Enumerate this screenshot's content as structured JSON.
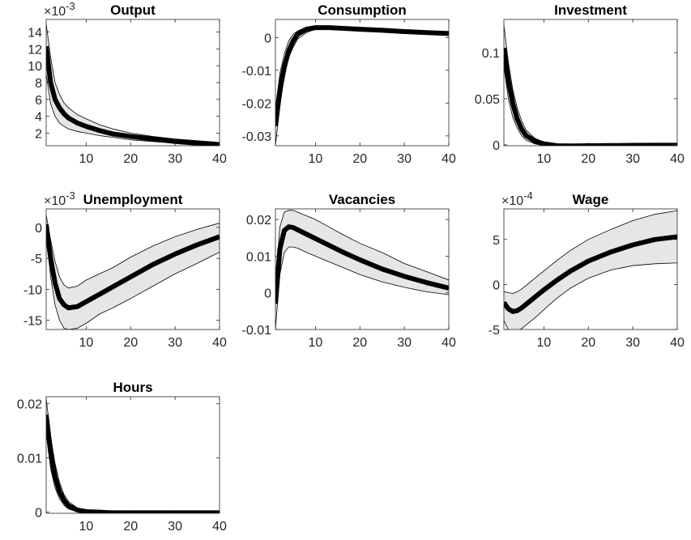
{
  "chart_data": [
    {
      "type": "band-line",
      "title": "Output",
      "y_exponent": {
        "base": "×10",
        "power": "-3"
      },
      "x": [
        1,
        2,
        3,
        4,
        5,
        6,
        8,
        10,
        13,
        16,
        20,
        25,
        30,
        35,
        40
      ],
      "values": [
        12.3,
        8,
        6,
        5,
        4.3,
        3.8,
        3.2,
        2.8,
        2.3,
        1.9,
        1.6,
        1.3,
        1.0,
        0.8,
        0.6
      ],
      "lower": [
        9,
        5.5,
        4,
        3.2,
        2.8,
        2.5,
        2.2,
        2.0,
        1.7,
        1.5,
        1.2,
        1.0,
        0.8,
        0.6,
        0.5
      ],
      "upper": [
        15,
        11,
        8,
        6.6,
        5.6,
        5,
        4.2,
        3.7,
        3.0,
        2.5,
        2.0,
        1.6,
        1.3,
        1.1,
        0.9
      ],
      "color": "#000000",
      "band_color": "#e6e6e6",
      "xlim": [
        1,
        40
      ],
      "xticks": [
        10,
        20,
        30,
        40
      ],
      "ylim": [
        0.5,
        15.5
      ],
      "yticks": [
        2,
        4,
        6,
        8,
        10,
        12,
        14
      ]
    },
    {
      "type": "band-line",
      "title": "Consumption",
      "x": [
        1,
        2,
        3,
        4,
        5,
        6,
        8,
        10,
        13,
        16,
        20,
        25,
        30,
        35,
        40
      ],
      "values": [
        -0.027,
        -0.016,
        -0.009,
        -0.004,
        -0.001,
        0.001,
        0.0025,
        0.003,
        0.003,
        0.0028,
        0.0025,
        0.0022,
        0.0018,
        0.0015,
        0.0012
      ],
      "lower": [
        -0.033,
        -0.021,
        -0.012,
        -0.006,
        -0.003,
        -0.0005,
        0.0015,
        0.0025,
        0.0026,
        0.0024,
        0.0021,
        0.0018,
        0.0015,
        0.0012,
        0.0009
      ],
      "upper": [
        -0.022,
        -0.011,
        -0.005,
        -0.001,
        0.001,
        0.002,
        0.0032,
        0.0035,
        0.0034,
        0.0032,
        0.0029,
        0.0026,
        0.0022,
        0.0019,
        0.0016
      ],
      "color": "#000000",
      "band_color": "#e6e6e6",
      "xlim": [
        1,
        40
      ],
      "xticks": [
        10,
        20,
        30,
        40
      ],
      "ylim": [
        -0.033,
        0.0055
      ],
      "yticks": [
        -0.03,
        -0.02,
        -0.01,
        0
      ]
    },
    {
      "type": "band-line",
      "title": "Investment",
      "x": [
        1,
        2,
        3,
        4,
        5,
        6,
        8,
        10,
        13,
        16,
        20,
        25,
        30,
        35,
        40
      ],
      "values": [
        0.105,
        0.07,
        0.045,
        0.028,
        0.017,
        0.01,
        0.004,
        0.001,
        -0.001,
        -0.0012,
        -0.001,
        -0.0008,
        -0.0006,
        -0.0005,
        -0.0004
      ],
      "lower": [
        0.085,
        0.05,
        0.03,
        0.018,
        0.01,
        0.005,
        0.001,
        -0.001,
        -0.002,
        -0.002,
        -0.0017,
        -0.0014,
        -0.0011,
        -0.0009,
        -0.0007
      ],
      "upper": [
        0.13,
        0.09,
        0.06,
        0.04,
        0.026,
        0.016,
        0.007,
        0.003,
        0.0005,
        0,
        0,
        0,
        0,
        0,
        0
      ],
      "color": "#000000",
      "band_color": "#e6e6e6",
      "xlim": [
        1,
        40
      ],
      "xticks": [
        10,
        20,
        30,
        40
      ],
      "ylim": [
        -0.001,
        0.136
      ],
      "yticks": [
        0,
        0.05,
        0.1
      ]
    },
    {
      "type": "band-line",
      "title": "Unemployment",
      "y_exponent": {
        "base": "×10",
        "power": "-3"
      },
      "x": [
        1,
        2,
        3,
        4,
        5,
        6,
        8,
        10,
        13,
        16,
        20,
        25,
        30,
        35,
        40
      ],
      "values": [
        0.5,
        -5,
        -9,
        -11.5,
        -12.5,
        -13,
        -12.8,
        -12,
        -10.8,
        -9.6,
        -8,
        -6,
        -4.3,
        -2.8,
        -1.5
      ],
      "lower": [
        -1,
        -8,
        -12.5,
        -15,
        -16.3,
        -16.5,
        -16.3,
        -15.5,
        -14,
        -13,
        -11.5,
        -9.5,
        -7.5,
        -5.8,
        -4
      ],
      "upper": [
        2,
        -2,
        -5.5,
        -8,
        -9.3,
        -9.8,
        -9.5,
        -8.5,
        -7.5,
        -6.5,
        -4.8,
        -3,
        -1.5,
        -0.3,
        0.7
      ],
      "color": "#000000",
      "band_color": "#e6e6e6",
      "xlim": [
        1,
        40
      ],
      "xticks": [
        10,
        20,
        30,
        40
      ],
      "ylim": [
        -16.5,
        3
      ],
      "yticks": [
        -15,
        -10,
        -5,
        0
      ]
    },
    {
      "type": "band-line",
      "title": "Vacancies",
      "x": [
        1,
        2,
        3,
        4,
        5,
        6,
        8,
        10,
        13,
        16,
        20,
        25,
        30,
        35,
        40
      ],
      "values": [
        -0.003,
        0.012,
        0.017,
        0.018,
        0.0178,
        0.0172,
        0.016,
        0.0148,
        0.013,
        0.0112,
        0.009,
        0.0065,
        0.0045,
        0.0028,
        0.0013
      ],
      "lower": [
        -0.01,
        0.005,
        0.011,
        0.0125,
        0.0125,
        0.0122,
        0.011,
        0.01,
        0.0085,
        0.007,
        0.005,
        0.003,
        0.0015,
        0.0003,
        -0.0005
      ],
      "upper": [
        0.003,
        0.018,
        0.022,
        0.0225,
        0.0225,
        0.022,
        0.021,
        0.02,
        0.018,
        0.016,
        0.0135,
        0.011,
        0.008,
        0.0058,
        0.0035
      ],
      "color": "#000000",
      "band_color": "#e6e6e6",
      "xlim": [
        1,
        40
      ],
      "xticks": [
        10,
        20,
        30,
        40
      ],
      "ylim": [
        -0.01,
        0.0229
      ],
      "yticks": [
        -0.01,
        0,
        0.01,
        0.02
      ]
    },
    {
      "type": "band-line",
      "title": "Wage",
      "y_exponent": {
        "base": "×10",
        "power": "-4"
      },
      "x": [
        1,
        2,
        3,
        4,
        5,
        6,
        8,
        10,
        13,
        16,
        20,
        25,
        30,
        35,
        40
      ],
      "values": [
        -2,
        -2.7,
        -3,
        -2.9,
        -2.6,
        -2.2,
        -1.4,
        -0.6,
        0.5,
        1.5,
        2.6,
        3.6,
        4.4,
        5,
        5.3
      ],
      "lower": [
        -4,
        -5,
        -5.3,
        -5.2,
        -4.9,
        -4.5,
        -3.7,
        -2.8,
        -1.5,
        -0.4,
        0.7,
        1.6,
        2.1,
        2.3,
        2.4
      ],
      "upper": [
        -0.8,
        -0.9,
        -1,
        -0.8,
        -0.5,
        -0.1,
        0.7,
        1.5,
        2.7,
        3.8,
        5,
        6.1,
        7.1,
        7.8,
        8.2
      ],
      "color": "#000000",
      "band_color": "#e6e6e6",
      "xlim": [
        1,
        40
      ],
      "xticks": [
        10,
        20,
        30,
        40
      ],
      "ylim": [
        -5,
        8.4
      ],
      "yticks": [
        -5,
        0,
        5
      ]
    },
    {
      "type": "band-line",
      "title": "Hours",
      "x": [
        1,
        2,
        3,
        4,
        5,
        6,
        8,
        10,
        13,
        16,
        20,
        25,
        30,
        35,
        40
      ],
      "values": [
        0.018,
        0.011,
        0.0065,
        0.0038,
        0.0022,
        0.0012,
        0.0004,
        0.0001,
        0,
        -0.0001,
        -0.0001,
        -0.0001,
        -0.0001,
        -0.0001,
        -0.0001
      ],
      "lower": [
        0.015,
        0.008,
        0.0045,
        0.0025,
        0.0013,
        0.0006,
        0.0001,
        -0.0001,
        -0.0002,
        -0.0002,
        -0.0002,
        -0.0002,
        -0.0002,
        -0.0002,
        -0.0002
      ],
      "upper": [
        0.021,
        0.014,
        0.009,
        0.0055,
        0.0033,
        0.002,
        0.0008,
        0.0003,
        0.0001,
        0,
        0,
        0,
        0,
        0,
        0
      ],
      "color": "#000000",
      "band_color": "#e6e6e6",
      "xlim": [
        1,
        40
      ],
      "xticks": [
        10,
        20,
        30,
        40
      ],
      "ylim": [
        -0.0002,
        0.0213
      ],
      "yticks": [
        0,
        0.01,
        0.02
      ]
    }
  ]
}
